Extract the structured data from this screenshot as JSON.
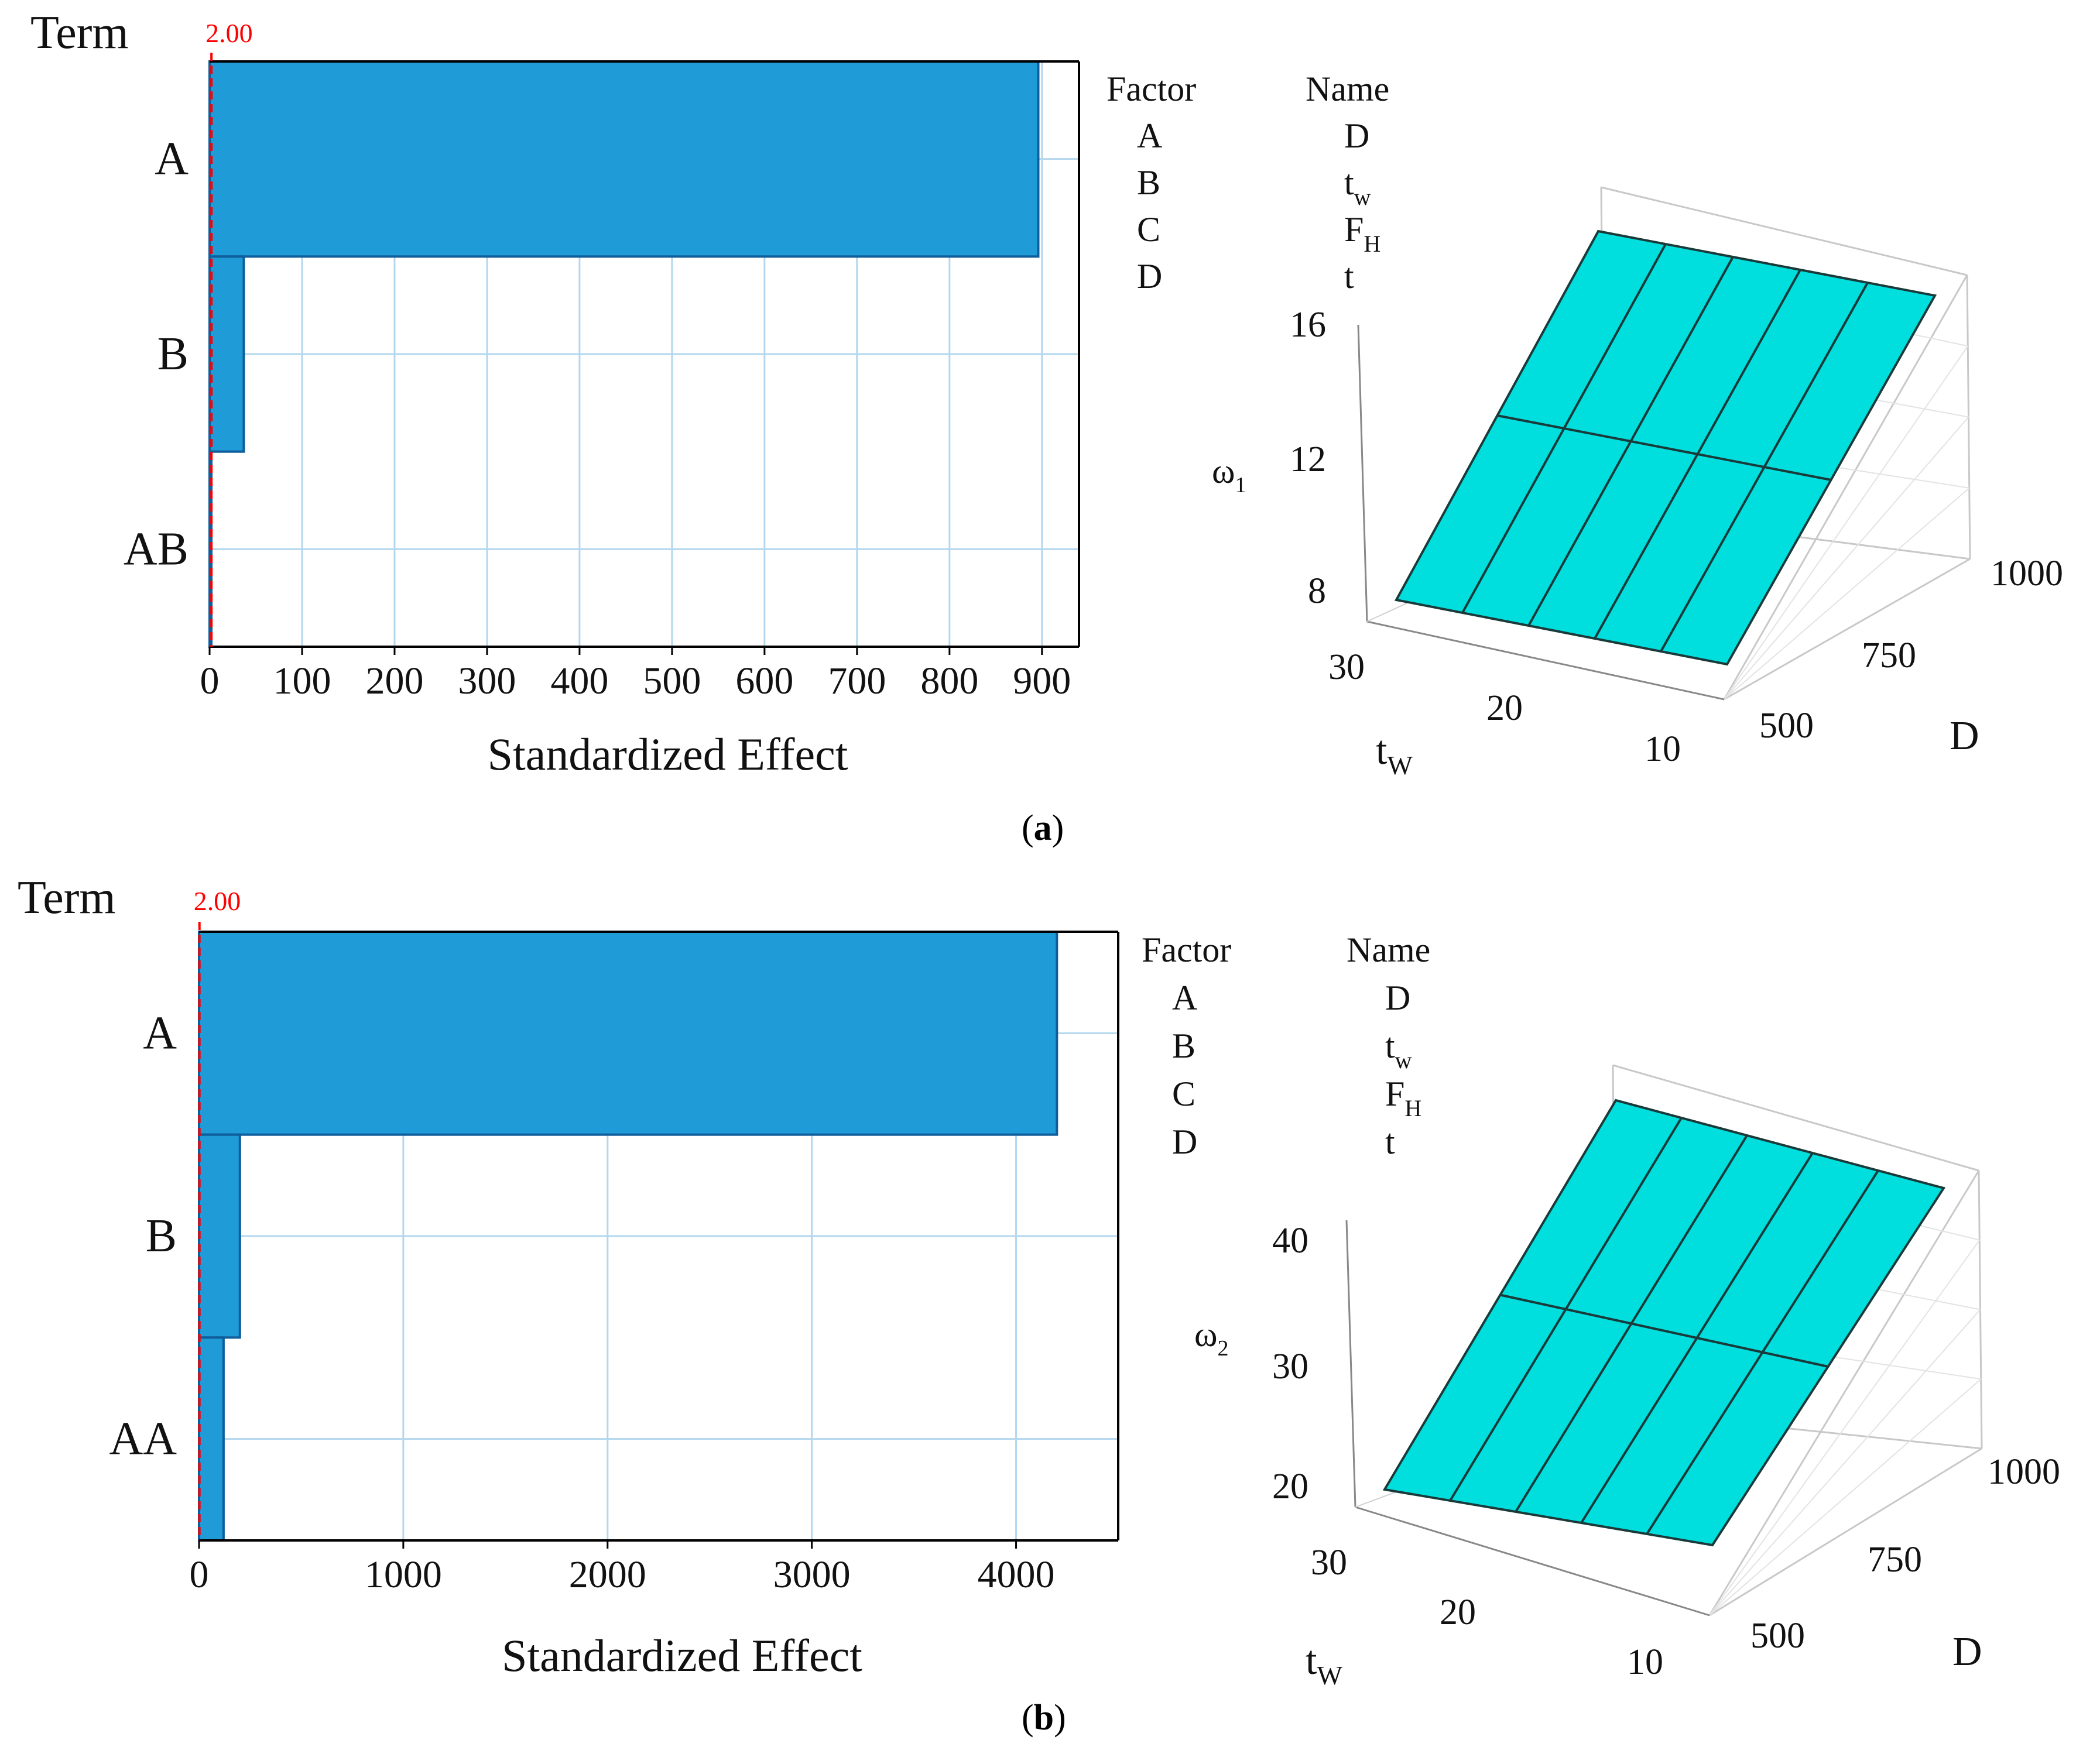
{
  "chart_data": [
    {
      "type": "bar",
      "orientation": "horizontal",
      "panel": "a",
      "title": "",
      "y_header": "Term",
      "categories": [
        "A",
        "B",
        "AB"
      ],
      "values": [
        896,
        37,
        1
      ],
      "xlabel": "Standardized Effect",
      "xlim": [
        0,
        940
      ],
      "xticks": [
        0,
        100,
        200,
        300,
        400,
        500,
        600,
        700,
        800,
        900
      ],
      "reference_line": {
        "value": 2.0,
        "label": "2.00",
        "color": "#ff0000",
        "style": "dashed"
      },
      "bar_color": "#1f9bd7",
      "grid": true
    },
    {
      "type": "bar",
      "orientation": "horizontal",
      "panel": "b",
      "title": "",
      "y_header": "Term",
      "categories": [
        "A",
        "B",
        "AA"
      ],
      "values": [
        4200,
        200,
        120
      ],
      "xlabel": "Standardized Effect",
      "xlim": [
        0,
        4500
      ],
      "xticks": [
        0,
        1000,
        2000,
        3000,
        4000
      ],
      "reference_line": {
        "value": 2.0,
        "label": "2.00",
        "color": "#ff0000",
        "style": "dashed"
      },
      "bar_color": "#1f9bd7",
      "grid": true
    },
    {
      "type": "surface",
      "panel": "a",
      "zlabel_base": "ω",
      "zlabel_sub": "1",
      "xlabel_base": "t",
      "xlabel_sub": "W",
      "ylabel": "D",
      "x_ticks": [
        30,
        20,
        10
      ],
      "y_ticks": [
        500,
        750,
        1000
      ],
      "z_ticks": [
        8,
        12,
        16
      ],
      "surface_color": "#00dede"
    },
    {
      "type": "surface",
      "panel": "b",
      "zlabel_base": "ω",
      "zlabel_sub": "2",
      "xlabel_base": "t",
      "xlabel_sub": "W",
      "ylabel": "D",
      "x_ticks": [
        30,
        20,
        10
      ],
      "y_ticks": [
        500,
        750,
        1000
      ],
      "z_ticks": [
        20,
        30,
        40
      ],
      "surface_color": "#00dede"
    }
  ],
  "legend_tables": [
    {
      "factor_header": "Factor",
      "name_header": "Name",
      "rows": [
        {
          "factor": "A",
          "name": "D",
          "sub": ""
        },
        {
          "factor": "B",
          "name": "t",
          "sub": "w"
        },
        {
          "factor": "C",
          "name": "F",
          "sub": "H"
        },
        {
          "factor": "D",
          "name": "t",
          "sub": ""
        }
      ]
    },
    {
      "factor_header": "Factor",
      "name_header": "Name",
      "rows": [
        {
          "factor": "A",
          "name": "D",
          "sub": ""
        },
        {
          "factor": "B",
          "name": "t",
          "sub": "w"
        },
        {
          "factor": "C",
          "name": "F",
          "sub": "H"
        },
        {
          "factor": "D",
          "name": "t",
          "sub": ""
        }
      ]
    }
  ],
  "panel_labels": [
    "a",
    "b"
  ]
}
